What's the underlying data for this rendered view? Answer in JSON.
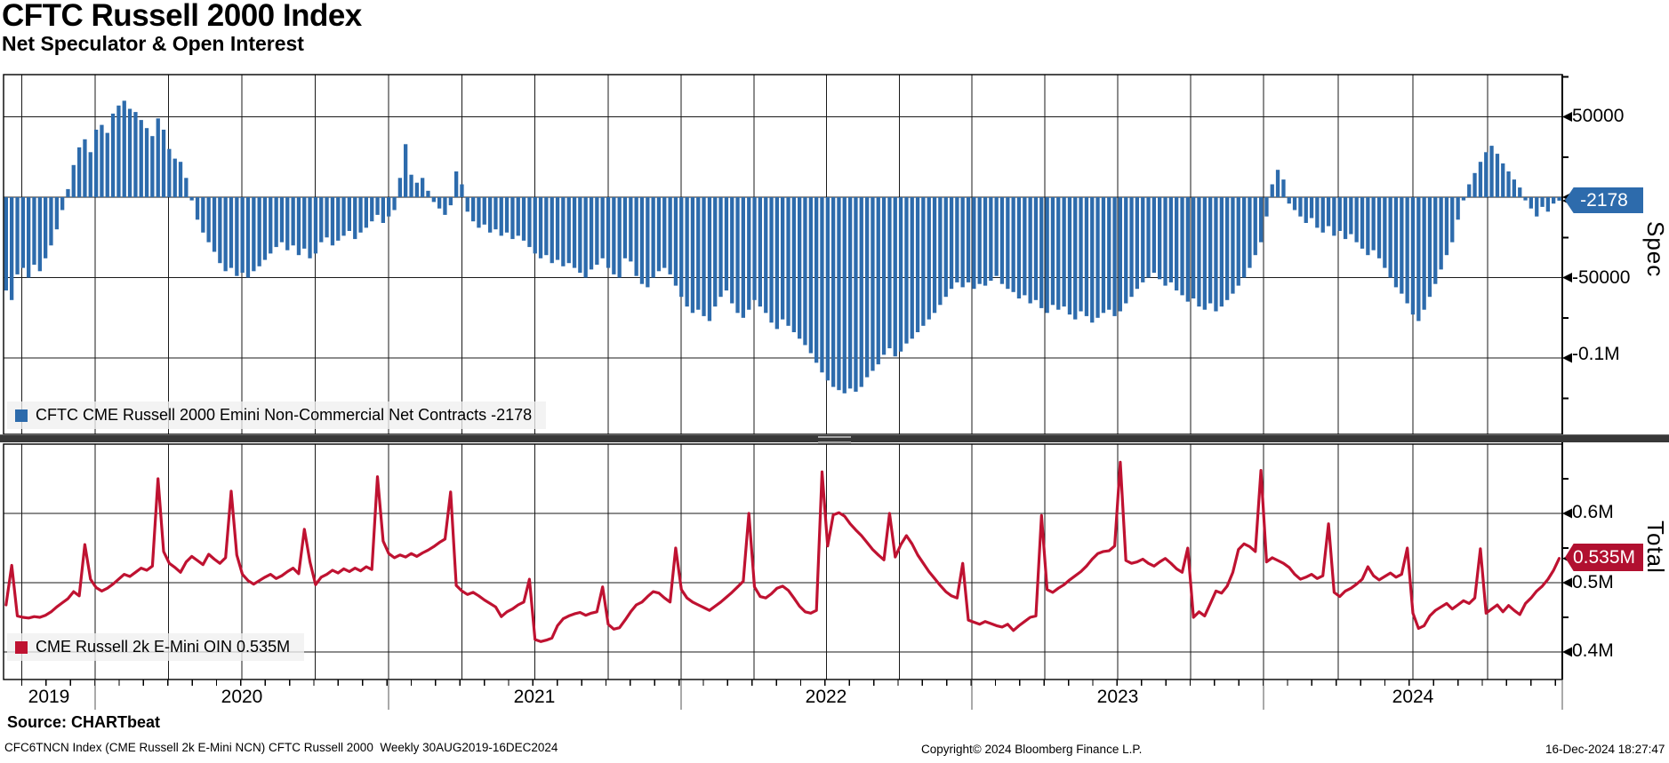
{
  "title": "CFTC Russell 2000 Index",
  "subtitle": "Net Speculator & Open Interest",
  "top_panel": {
    "legend": "CFTC CME Russell 2000 Emini Non-Commercial Net Contracts -2178",
    "axis_label": "Spec",
    "last_value_badge": "-2178",
    "yticks": [
      "50000",
      "-50000",
      "-0.1M"
    ]
  },
  "bottom_panel": {
    "legend": "CME Russell 2k E-Mini OIN 0.535M",
    "axis_label": "Total",
    "last_value_badge": "0.535M",
    "yticks": [
      "0.6M",
      "0.5M",
      "0.4M"
    ]
  },
  "x_axis": {
    "years": [
      "2019",
      "2020",
      "2021",
      "2022",
      "2023",
      "2024"
    ]
  },
  "footer": {
    "source": "Source: CHARTbeat",
    "fine_print": "CFC6TNCN Index (CME Russell 2k E-Mini NCN) CFTC Russell 2000  Weekly 30AUG2019-16DEC2024",
    "copyright": "Copyright© 2024 Bloomberg Finance L.P.",
    "timestamp": "16-Dec-2024 18:27:47"
  },
  "colors": {
    "bar_blue": "#2d6bac",
    "line_red": "#bf1231",
    "badge_red": "#b11030",
    "grid": "#1a1a1a",
    "legend_bg": "#f0f0f0",
    "divider": "#383838"
  },
  "chart_data": [
    {
      "type": "bar",
      "name": "CFTC CME Russell 2000 Emini Non-Commercial Net Contracts",
      "frequency": "weekly",
      "x_range": [
        "30AUG2019",
        "16DEC2024"
      ],
      "ylabel": "Spec",
      "ylim": [
        -149000,
        77400
      ],
      "yticks": [
        50000,
        0,
        -50000,
        -100000
      ],
      "last_value": -2178,
      "values": [
        -58000,
        -64000,
        -48000,
        -44000,
        -50000,
        -42000,
        -46000,
        -38000,
        -30000,
        -20000,
        -8000,
        5000,
        20000,
        31000,
        36000,
        28000,
        42000,
        45000,
        40000,
        52000,
        57000,
        60000,
        55000,
        53000,
        48000,
        43000,
        38000,
        49000,
        42000,
        30000,
        24000,
        22000,
        12000,
        -2000,
        -14000,
        -22000,
        -28000,
        -34000,
        -41000,
        -46000,
        -44000,
        -49000,
        -47000,
        -50000,
        -46000,
        -43000,
        -39000,
        -35000,
        -31000,
        -28000,
        -33000,
        -30000,
        -36000,
        -32000,
        -38000,
        -35000,
        -28000,
        -25000,
        -30000,
        -27000,
        -24000,
        -21000,
        -26000,
        -22000,
        -19000,
        -15000,
        -11000,
        -16000,
        -12000,
        -8000,
        12000,
        33000,
        14000,
        9000,
        12000,
        4000,
        -3000,
        -7000,
        -11000,
        -5000,
        16000,
        8000,
        -9000,
        -15000,
        -19000,
        -17000,
        -22000,
        -20000,
        -24000,
        -22000,
        -26000,
        -24000,
        -27000,
        -31000,
        -35000,
        -38000,
        -36000,
        -41000,
        -39000,
        -43000,
        -41000,
        -44000,
        -47000,
        -50000,
        -45000,
        -42000,
        -38000,
        -44000,
        -48000,
        -50000,
        -38000,
        -40000,
        -49000,
        -54000,
        -56000,
        -50000,
        -46000,
        -44000,
        -48000,
        -55000,
        -62000,
        -68000,
        -72000,
        -70000,
        -74000,
        -77000,
        -68000,
        -62000,
        -58000,
        -66000,
        -72000,
        -75000,
        -70000,
        -64000,
        -68000,
        -72000,
        -78000,
        -82000,
        -76000,
        -80000,
        -84000,
        -88000,
        -92000,
        -97000,
        -103000,
        -109000,
        -114000,
        -118000,
        -120000,
        -122000,
        -119000,
        -121000,
        -118000,
        -112000,
        -108000,
        -104000,
        -98000,
        -94000,
        -99000,
        -96000,
        -91000,
        -88000,
        -84000,
        -80000,
        -76000,
        -72000,
        -67000,
        -62000,
        -57000,
        -53000,
        -56000,
        -53000,
        -57000,
        -54000,
        -55000,
        -52000,
        -49000,
        -54000,
        -57000,
        -59000,
        -63000,
        -61000,
        -66000,
        -64000,
        -69000,
        -72000,
        -67000,
        -70000,
        -68000,
        -73000,
        -76000,
        -71000,
        -74000,
        -78000,
        -75000,
        -72000,
        -70000,
        -74000,
        -71000,
        -66000,
        -62000,
        -57000,
        -53000,
        -50000,
        -47000,
        -51000,
        -55000,
        -53000,
        -58000,
        -61000,
        -65000,
        -63000,
        -68000,
        -70000,
        -66000,
        -71000,
        -68000,
        -64000,
        -60000,
        -55000,
        -50000,
        -44000,
        -36000,
        -28000,
        -12000,
        8000,
        17000,
        11000,
        -4000,
        -8000,
        -12000,
        -16000,
        -13000,
        -19000,
        -22000,
        -18000,
        -24000,
        -21000,
        -26000,
        -23000,
        -28000,
        -32000,
        -36000,
        -33000,
        -38000,
        -44000,
        -50000,
        -56000,
        -60000,
        -66000,
        -73000,
        -77000,
        -70000,
        -62000,
        -54000,
        -45000,
        -36000,
        -28000,
        -14000,
        -2000,
        8000,
        15000,
        22000,
        28000,
        32000,
        27000,
        21000,
        16000,
        11000,
        6000,
        -2000,
        -7000,
        -12000,
        -6000,
        -9000,
        -4000,
        -2178
      ]
    },
    {
      "type": "line",
      "name": "CME Russell 2k E-Mini OIN",
      "frequency": "weekly",
      "x_range": [
        "30AUG2019",
        "16DEC2024"
      ],
      "ylabel": "Total",
      "unit": "M contracts",
      "ylim": [
        0.358,
        0.701
      ],
      "yticks": [
        0.6,
        0.5,
        0.4
      ],
      "last_value": 0.535,
      "values": [
        0.468,
        0.525,
        0.452,
        0.45,
        0.449,
        0.451,
        0.45,
        0.453,
        0.458,
        0.465,
        0.471,
        0.477,
        0.487,
        0.481,
        0.555,
        0.505,
        0.493,
        0.488,
        0.492,
        0.498,
        0.505,
        0.512,
        0.509,
        0.515,
        0.521,
        0.518,
        0.524,
        0.65,
        0.545,
        0.528,
        0.522,
        0.515,
        0.53,
        0.538,
        0.532,
        0.526,
        0.541,
        0.534,
        0.528,
        0.536,
        0.632,
        0.54,
        0.512,
        0.503,
        0.498,
        0.503,
        0.508,
        0.512,
        0.506,
        0.51,
        0.516,
        0.521,
        0.513,
        0.577,
        0.53,
        0.497,
        0.508,
        0.512,
        0.518,
        0.514,
        0.52,
        0.516,
        0.521,
        0.517,
        0.523,
        0.519,
        0.653,
        0.56,
        0.542,
        0.536,
        0.54,
        0.537,
        0.542,
        0.538,
        0.543,
        0.547,
        0.552,
        0.558,
        0.563,
        0.631,
        0.496,
        0.488,
        0.483,
        0.486,
        0.481,
        0.475,
        0.47,
        0.465,
        0.451,
        0.458,
        0.462,
        0.468,
        0.472,
        0.505,
        0.418,
        0.415,
        0.417,
        0.42,
        0.438,
        0.448,
        0.452,
        0.455,
        0.457,
        0.453,
        0.456,
        0.458,
        0.494,
        0.44,
        0.433,
        0.435,
        0.446,
        0.458,
        0.468,
        0.472,
        0.48,
        0.487,
        0.485,
        0.478,
        0.472,
        0.55,
        0.49,
        0.478,
        0.472,
        0.468,
        0.464,
        0.46,
        0.466,
        0.472,
        0.479,
        0.486,
        0.494,
        0.502,
        0.6,
        0.494,
        0.48,
        0.478,
        0.484,
        0.492,
        0.495,
        0.489,
        0.478,
        0.466,
        0.458,
        0.456,
        0.46,
        0.66,
        0.553,
        0.598,
        0.601,
        0.596,
        0.585,
        0.576,
        0.568,
        0.558,
        0.548,
        0.54,
        0.533,
        0.6,
        0.537,
        0.555,
        0.568,
        0.556,
        0.54,
        0.528,
        0.516,
        0.506,
        0.496,
        0.487,
        0.481,
        0.478,
        0.528,
        0.446,
        0.443,
        0.44,
        0.444,
        0.441,
        0.438,
        0.436,
        0.44,
        0.431,
        0.438,
        0.444,
        0.45,
        0.452,
        0.597,
        0.49,
        0.486,
        0.492,
        0.497,
        0.504,
        0.51,
        0.516,
        0.524,
        0.534,
        0.542,
        0.545,
        0.546,
        0.553,
        0.674,
        0.532,
        0.528,
        0.53,
        0.534,
        0.528,
        0.524,
        0.53,
        0.535,
        0.528,
        0.52,
        0.515,
        0.55,
        0.45,
        0.458,
        0.452,
        0.47,
        0.488,
        0.485,
        0.495,
        0.515,
        0.548,
        0.556,
        0.552,
        0.545,
        0.662,
        0.53,
        0.536,
        0.532,
        0.528,
        0.522,
        0.512,
        0.505,
        0.508,
        0.512,
        0.506,
        0.51,
        0.585,
        0.486,
        0.48,
        0.488,
        0.492,
        0.498,
        0.505,
        0.523,
        0.51,
        0.504,
        0.509,
        0.514,
        0.508,
        0.512,
        0.55,
        0.456,
        0.434,
        0.438,
        0.452,
        0.46,
        0.465,
        0.47,
        0.462,
        0.468,
        0.474,
        0.47,
        0.478,
        0.549,
        0.456,
        0.462,
        0.468,
        0.458,
        0.467,
        0.46,
        0.454,
        0.47,
        0.478,
        0.488,
        0.495,
        0.505,
        0.518,
        0.535
      ]
    }
  ]
}
